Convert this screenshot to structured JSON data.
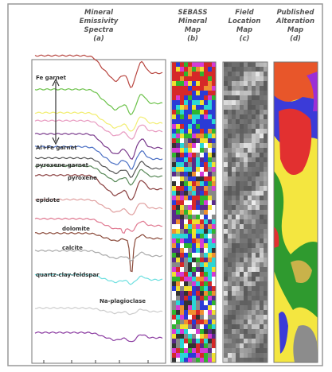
{
  "panels": [
    {
      "title": [
        "Mineral",
        "Emissivity",
        "Spectra",
        "(a)"
      ]
    },
    {
      "title": [
        "SEBASS",
        "Mineral",
        "Map",
        "(b)"
      ]
    },
    {
      "title": [
        "Field",
        "Location",
        "Map",
        "(c)"
      ]
    },
    {
      "title": [
        "Published",
        "Alteration",
        "Map",
        "(d)"
      ]
    }
  ],
  "spectra_labels": [
    "Fe garnet",
    "Al+Fe garnet",
    "pyroxene-garnet",
    "pyroxene",
    "epidote",
    "dolomite",
    "calcite",
    "quartz-clay-feldspar",
    "Na-plagioclase"
  ]
}
